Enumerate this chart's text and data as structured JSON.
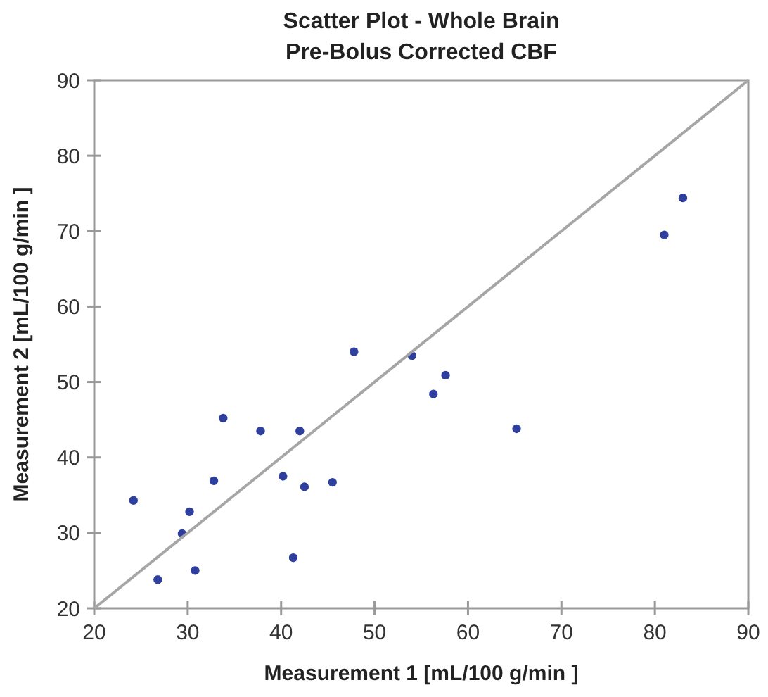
{
  "chart_data": {
    "type": "scatter",
    "title": "Scatter Plot - Whole Brain",
    "subtitle": "Pre-Bolus Corrected CBF",
    "xlabel": "Measurement 1 [mL/100 g/min ]",
    "ylabel": "Measurement 2 [mL/100 g/min ]",
    "xlim": [
      20,
      90
    ],
    "ylim": [
      20,
      90
    ],
    "xticks": [
      20,
      30,
      40,
      50,
      60,
      70,
      80,
      90
    ],
    "yticks": [
      20,
      30,
      40,
      50,
      60,
      70,
      80,
      90
    ],
    "grid": false,
    "series": [
      {
        "marker": "circle",
        "color": "#2e3f9e",
        "x": [
          24.2,
          26.8,
          29.4,
          30.2,
          30.8,
          32.8,
          33.8,
          37.8,
          40.2,
          41.3,
          42.0,
          42.5,
          45.5,
          47.8,
          54.0,
          56.3,
          57.6,
          65.2,
          81.0,
          83.0
        ],
        "values": [
          34.3,
          23.8,
          29.9,
          32.8,
          25.0,
          36.9,
          45.2,
          43.5,
          37.5,
          26.7,
          43.5,
          36.1,
          36.7,
          54.0,
          53.5,
          48.4,
          50.9,
          43.8,
          69.5,
          74.4
        ]
      },
      {
        "type": "line",
        "color": "#a6a6a6",
        "x": [
          20,
          90
        ],
        "values": [
          20,
          90
        ]
      }
    ]
  }
}
